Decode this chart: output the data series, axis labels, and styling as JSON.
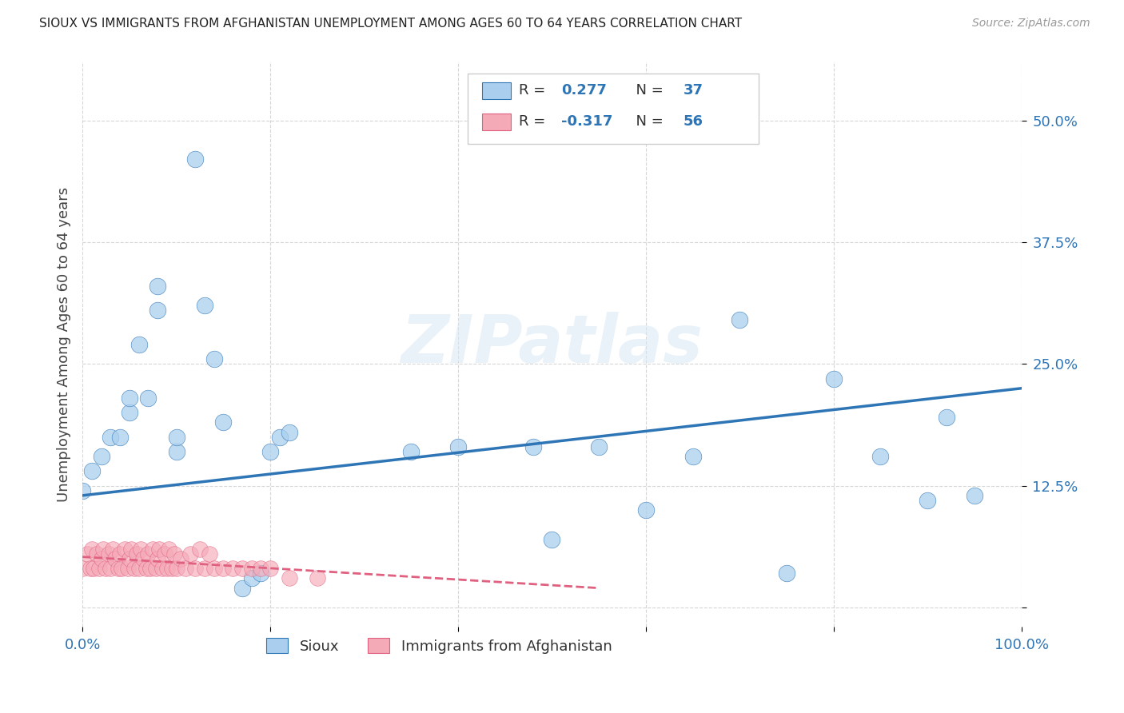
{
  "title": "SIOUX VS IMMIGRANTS FROM AFGHANISTAN UNEMPLOYMENT AMONG AGES 60 TO 64 YEARS CORRELATION CHART",
  "source": "Source: ZipAtlas.com",
  "ylabel": "Unemployment Among Ages 60 to 64 years",
  "xlim": [
    0.0,
    1.0
  ],
  "ylim": [
    -0.02,
    0.56
  ],
  "yticks": [
    0.0,
    0.125,
    0.25,
    0.375,
    0.5
  ],
  "ytick_labels": [
    "",
    "12.5%",
    "25.0%",
    "37.5%",
    "50.0%"
  ],
  "xticks": [
    0.0,
    0.2,
    0.4,
    0.6,
    0.8,
    1.0
  ],
  "xtick_labels": [
    "0.0%",
    "",
    "",
    "",
    "",
    "100.0%"
  ],
  "legend_label1": "Sioux",
  "legend_label2": "Immigrants from Afghanistan",
  "R1": "0.277",
  "N1": "37",
  "R2": "-0.317",
  "N2": "56",
  "color_blue": "#aacfee",
  "color_pink": "#f5aab8",
  "line_color_blue": "#2e75b6",
  "line_color_pink": "#e06080",
  "watermark": "ZIPatlas",
  "sioux_x": [
    0.0,
    0.01,
    0.02,
    0.03,
    0.04,
    0.05,
    0.05,
    0.06,
    0.07,
    0.08,
    0.08,
    0.1,
    0.1,
    0.12,
    0.13,
    0.14,
    0.15,
    0.17,
    0.18,
    0.19,
    0.35,
    0.4,
    0.48,
    0.5,
    0.55,
    0.6,
    0.65,
    0.7,
    0.75,
    0.8,
    0.85,
    0.9,
    0.92,
    0.95,
    0.2,
    0.21,
    0.22
  ],
  "sioux_y": [
    0.12,
    0.14,
    0.155,
    0.175,
    0.175,
    0.2,
    0.215,
    0.27,
    0.215,
    0.305,
    0.33,
    0.16,
    0.175,
    0.46,
    0.31,
    0.255,
    0.19,
    0.02,
    0.03,
    0.035,
    0.16,
    0.165,
    0.165,
    0.07,
    0.165,
    0.1,
    0.155,
    0.295,
    0.035,
    0.235,
    0.155,
    0.11,
    0.195,
    0.115,
    0.16,
    0.175,
    0.18
  ],
  "afghan_x": [
    0.0,
    0.005,
    0.008,
    0.01,
    0.012,
    0.015,
    0.018,
    0.02,
    0.022,
    0.025,
    0.028,
    0.03,
    0.032,
    0.035,
    0.038,
    0.04,
    0.042,
    0.045,
    0.048,
    0.05,
    0.052,
    0.055,
    0.058,
    0.06,
    0.062,
    0.065,
    0.068,
    0.07,
    0.072,
    0.075,
    0.078,
    0.08,
    0.082,
    0.085,
    0.088,
    0.09,
    0.092,
    0.095,
    0.098,
    0.1,
    0.105,
    0.11,
    0.115,
    0.12,
    0.125,
    0.13,
    0.135,
    0.14,
    0.15,
    0.16,
    0.17,
    0.18,
    0.19,
    0.2,
    0.22,
    0.25
  ],
  "afghan_y": [
    0.04,
    0.055,
    0.04,
    0.06,
    0.04,
    0.055,
    0.04,
    0.05,
    0.06,
    0.04,
    0.055,
    0.04,
    0.06,
    0.05,
    0.04,
    0.055,
    0.04,
    0.06,
    0.04,
    0.05,
    0.06,
    0.04,
    0.055,
    0.04,
    0.06,
    0.05,
    0.04,
    0.055,
    0.04,
    0.06,
    0.04,
    0.05,
    0.06,
    0.04,
    0.055,
    0.04,
    0.06,
    0.04,
    0.055,
    0.04,
    0.05,
    0.04,
    0.055,
    0.04,
    0.06,
    0.04,
    0.055,
    0.04,
    0.04,
    0.04,
    0.04,
    0.04,
    0.04,
    0.04,
    0.03,
    0.03
  ],
  "blue_line_x": [
    0.0,
    1.0
  ],
  "blue_line_y": [
    0.115,
    0.225
  ],
  "pink_line_x": [
    0.0,
    0.55
  ],
  "pink_line_y": [
    0.052,
    0.02
  ],
  "background_color": "#ffffff",
  "grid_color": "#cccccc",
  "tick_color": "#2e75b6",
  "title_fontsize": 11,
  "source_fontsize": 10,
  "axis_fontsize": 13,
  "legend_fontsize": 13
}
